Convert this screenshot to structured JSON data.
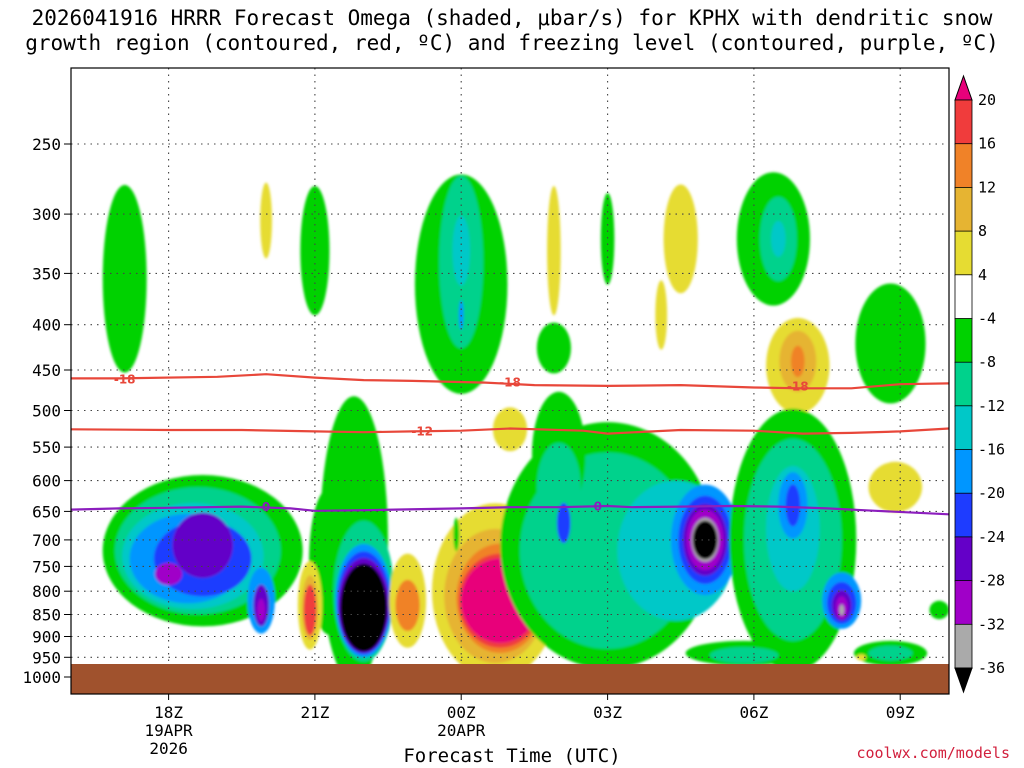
{
  "chart_data": {
    "type": "heatmap",
    "title_line1": "2026041916 HRRR Forecast Omega (shaded, μbar/s) for KPHX with dendritic snow",
    "title_line2": "growth region (contoured, red, ºC) and freezing level (contoured, purple, ºC)",
    "xlabel": "Forecast Time (UTC)",
    "credit": "coolwx.com/models",
    "x_ticks": [
      {
        "hour": 18,
        "lines": [
          "18Z",
          "19APR",
          "2026"
        ]
      },
      {
        "hour": 21,
        "lines": [
          "21Z"
        ]
      },
      {
        "hour": 24,
        "lines": [
          "00Z",
          "20APR"
        ]
      },
      {
        "hour": 27,
        "lines": [
          "03Z"
        ]
      },
      {
        "hour": 30,
        "lines": [
          "06Z"
        ]
      },
      {
        "hour": 33,
        "lines": [
          "09Z"
        ]
      }
    ],
    "x_range_hours": [
      16.0,
      34.0
    ],
    "y_label_values": [
      250,
      300,
      350,
      400,
      450,
      500,
      550,
      600,
      650,
      700,
      750,
      800,
      850,
      900,
      950,
      1000
    ],
    "y_range_hpa": [
      200,
      1000
    ],
    "colorbar": {
      "labels": [
        "20",
        "16",
        "12",
        "8",
        "4",
        "-4",
        "-8",
        "-12",
        "-16",
        "-20",
        "-24",
        "-28",
        "-32",
        "-36"
      ],
      "colors": [
        "#e8007a",
        "#f03c3c",
        "#f08228",
        "#e6b432",
        "#e6dc32",
        "#ffffff",
        "#00d200",
        "#00d28c",
        "#00c8c8",
        "#0096ff",
        "#1e3cff",
        "#6400c8",
        "#a000c8",
        "#aaaaaa",
        "#000000"
      ]
    },
    "colors": {
      "ground": "#a0522d",
      "dgz_contour": "#e8473a",
      "freezing_contour": "#8c1ebe"
    },
    "dgz_contours": [
      {
        "label": "-18",
        "points": [
          [
            16.0,
            460
          ],
          [
            17.0,
            460
          ],
          [
            19.0,
            458
          ],
          [
            20.0,
            455
          ],
          [
            21.0,
            459
          ],
          [
            22.0,
            462
          ],
          [
            23.0,
            463
          ],
          [
            24.5,
            465
          ],
          [
            25.5,
            468
          ],
          [
            27.0,
            469
          ],
          [
            28.5,
            468
          ],
          [
            30.0,
            471
          ],
          [
            31.0,
            472
          ],
          [
            32.0,
            472
          ],
          [
            33.0,
            467
          ],
          [
            34.0,
            466
          ]
        ],
        "label_positions": [
          [
            17.1,
            461
          ],
          [
            25.0,
            465
          ],
          [
            30.9,
            470
          ]
        ]
      },
      {
        "label": "-12",
        "points": [
          [
            16.0,
            525
          ],
          [
            18.0,
            526
          ],
          [
            19.5,
            526
          ],
          [
            21.0,
            528
          ],
          [
            22.0,
            529
          ],
          [
            23.0,
            528
          ],
          [
            24.0,
            527
          ],
          [
            25.0,
            524
          ],
          [
            26.5,
            527
          ],
          [
            27.0,
            531
          ],
          [
            28.5,
            526
          ],
          [
            30.0,
            527
          ],
          [
            31.0,
            531
          ],
          [
            32.0,
            530
          ],
          [
            33.0,
            528
          ],
          [
            34.0,
            524
          ]
        ],
        "label_positions": [
          [
            23.2,
            528
          ]
        ]
      }
    ],
    "freezing_contours": [
      {
        "label": "0",
        "points": [
          [
            16.0,
            647
          ],
          [
            17.0,
            645
          ],
          [
            18.0,
            644
          ],
          [
            19.5,
            642
          ],
          [
            20.5,
            645
          ],
          [
            21.0,
            649
          ],
          [
            22.0,
            648
          ],
          [
            24.0,
            645
          ],
          [
            25.0,
            643
          ],
          [
            26.0,
            643
          ],
          [
            27.0,
            641
          ],
          [
            27.5,
            643
          ],
          [
            28.5,
            642
          ],
          [
            29.5,
            641
          ],
          [
            30.5,
            642
          ],
          [
            31.5,
            645
          ],
          [
            32.5,
            649
          ],
          [
            34.0,
            655
          ]
        ],
        "label_positions": [
          [
            20.0,
            643
          ],
          [
            26.8,
            642
          ]
        ]
      }
    ]
  }
}
